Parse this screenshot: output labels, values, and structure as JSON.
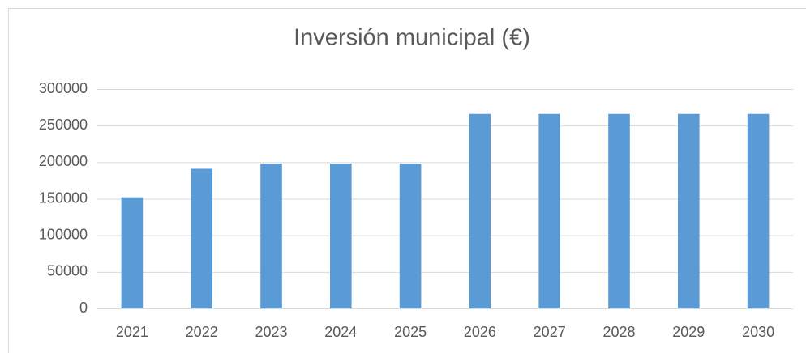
{
  "chart_data": {
    "type": "bar",
    "title": "Inversión municipal (€)",
    "categories": [
      "2021",
      "2022",
      "2023",
      "2024",
      "2025",
      "2026",
      "2027",
      "2028",
      "2029",
      "2030"
    ],
    "values": [
      152000,
      191000,
      198000,
      198000,
      198000,
      266000,
      266000,
      266000,
      266000,
      266000
    ],
    "color": "#5b9bd5",
    "ylim": [
      0,
      300000
    ],
    "yticks": [
      0,
      50000,
      100000,
      150000,
      200000,
      250000,
      300000
    ],
    "grid": true
  }
}
